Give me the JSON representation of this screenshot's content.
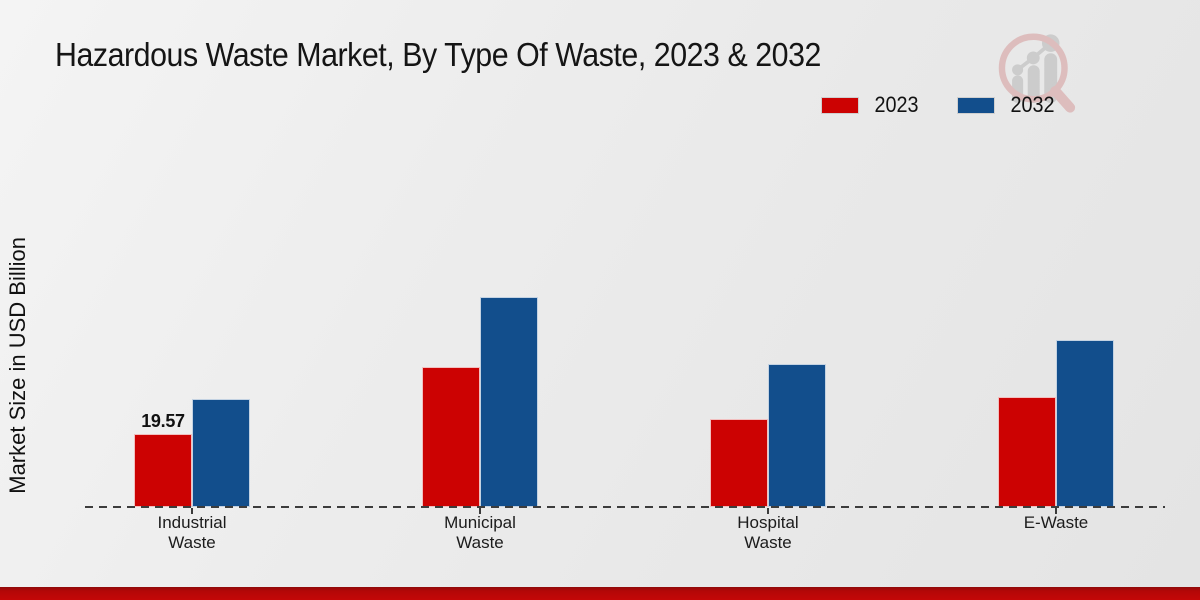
{
  "meta": {
    "title": "Hazardous Waste Market, By Type Of Waste, 2023 & 2032"
  },
  "branding": {
    "logo_icon": "magnifier-growth-chart-logo",
    "footer_accent_color": "#C40707"
  },
  "colors": {
    "series_2023": "#CC0202",
    "series_2032": "#124E8C",
    "background": "#EBEBEB",
    "baseline": "#3C3C3C"
  },
  "chart_data": {
    "type": "bar",
    "title": "Hazardous Waste Market, By Type Of Waste, 2023 & 2032",
    "categories": [
      "Industrial Waste",
      "Municipal Waste",
      "Hospital Waste",
      "E-Waste"
    ],
    "series": [
      {
        "name": "2023",
        "color": "#CC0202",
        "values": [
          19.57,
          37.7,
          23.8,
          29.6
        ],
        "labels": [
          "19.57",
          "",
          "",
          ""
        ]
      },
      {
        "name": "2032",
        "color": "#124E8C",
        "values": [
          29.2,
          56.6,
          38.5,
          45.0
        ],
        "labels": [
          "",
          "",
          "",
          ""
        ]
      }
    ],
    "xlabel": "",
    "ylabel": "Market Size in USD Billion",
    "y_axis_ticks_visible": false,
    "grid": false,
    "baseline_style": "dashed",
    "legend_position": "top-right",
    "data_label_note": "only Industrial Waste 2023 bar is labeled"
  }
}
